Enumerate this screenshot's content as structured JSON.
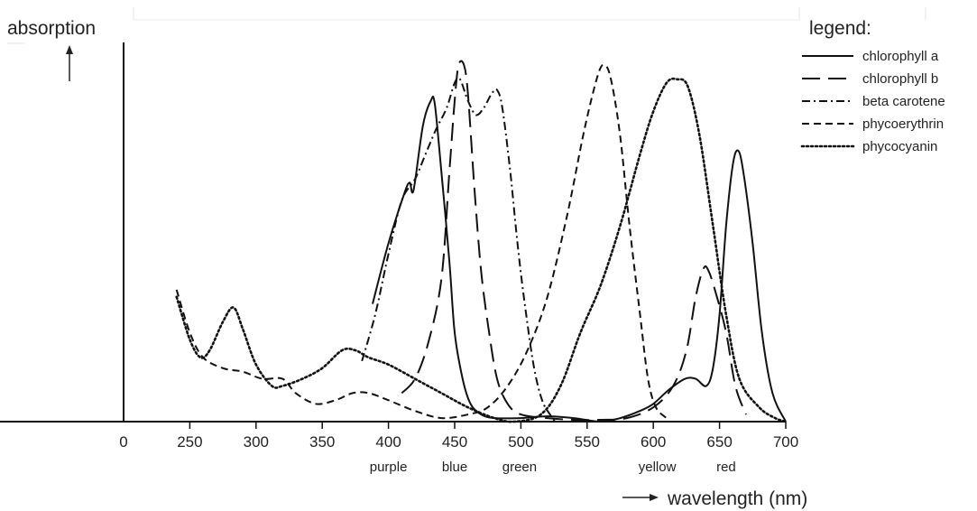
{
  "chart_data": {
    "type": "line",
    "title": "",
    "ylabel": "absorption",
    "xlabel": "wavelength (nm)",
    "xlim": [
      200,
      700
    ],
    "x_axis_break_between": [
      0,
      250
    ],
    "xticks": [
      "0",
      "250",
      "300",
      "350",
      "400",
      "450",
      "500",
      "550",
      "600",
      "650",
      "700"
    ],
    "xtick_values": [
      200,
      250,
      300,
      350,
      400,
      450,
      500,
      550,
      600,
      650,
      700
    ],
    "color_regions": [
      {
        "label": "purple",
        "x": 400
      },
      {
        "label": "blue",
        "x": 450
      },
      {
        "label": "green",
        "x": 499
      },
      {
        "label": "yellow",
        "x": 603
      },
      {
        "label": "red",
        "x": 655
      }
    ],
    "ylim": [
      0,
      1
    ],
    "legend": {
      "title": "legend:",
      "position": "top-right"
    },
    "series": [
      {
        "name": "chlorophyll a",
        "dash": "solid",
        "points": [
          [
            388,
            0.33
          ],
          [
            400,
            0.5
          ],
          [
            412,
            0.64
          ],
          [
            416,
            0.67
          ],
          [
            419,
            0.65
          ],
          [
            426,
            0.83
          ],
          [
            432,
            0.9
          ],
          [
            435,
            0.89
          ],
          [
            440,
            0.7
          ],
          [
            446,
            0.45
          ],
          [
            450,
            0.25
          ],
          [
            456,
            0.12
          ],
          [
            462,
            0.05
          ],
          [
            470,
            0.02
          ],
          [
            480,
            0.01
          ],
          [
            500,
            0.01
          ],
          [
            520,
            0.015
          ],
          [
            540,
            0.01
          ],
          [
            560,
            0.0
          ],
          [
            575,
            0.01
          ],
          [
            590,
            0.03
          ],
          [
            600,
            0.05
          ],
          [
            612,
            0.09
          ],
          [
            624,
            0.12
          ],
          [
            632,
            0.12
          ],
          [
            640,
            0.1
          ],
          [
            645,
            0.15
          ],
          [
            650,
            0.3
          ],
          [
            655,
            0.55
          ],
          [
            660,
            0.72
          ],
          [
            664,
            0.76
          ],
          [
            668,
            0.7
          ],
          [
            675,
            0.5
          ],
          [
            682,
            0.25
          ],
          [
            690,
            0.08
          ],
          [
            700,
            0.0
          ]
        ]
      },
      {
        "name": "chlorophyll b",
        "dash": "longdash",
        "points": [
          [
            410,
            0.08
          ],
          [
            420,
            0.12
          ],
          [
            430,
            0.22
          ],
          [
            440,
            0.4
          ],
          [
            446,
            0.7
          ],
          [
            450,
            0.9
          ],
          [
            453,
            1.0
          ],
          [
            457,
            1.0
          ],
          [
            460,
            0.92
          ],
          [
            465,
            0.65
          ],
          [
            470,
            0.42
          ],
          [
            476,
            0.25
          ],
          [
            482,
            0.12
          ],
          [
            490,
            0.05
          ],
          [
            500,
            0.02
          ],
          [
            520,
            0.01
          ],
          [
            540,
            0.005
          ],
          [
            560,
            0.005
          ],
          [
            580,
            0.01
          ],
          [
            600,
            0.04
          ],
          [
            615,
            0.1
          ],
          [
            625,
            0.2
          ],
          [
            632,
            0.35
          ],
          [
            638,
            0.43
          ],
          [
            642,
            0.42
          ],
          [
            648,
            0.35
          ],
          [
            655,
            0.25
          ],
          [
            662,
            0.1
          ],
          [
            670,
            0.02
          ]
        ]
      },
      {
        "name": "beta carotene",
        "dash": "dashdot",
        "points": [
          [
            380,
            0.17
          ],
          [
            390,
            0.3
          ],
          [
            400,
            0.47
          ],
          [
            410,
            0.62
          ],
          [
            420,
            0.68
          ],
          [
            428,
            0.75
          ],
          [
            436,
            0.82
          ],
          [
            444,
            0.88
          ],
          [
            450,
            0.95
          ],
          [
            454,
            0.96
          ],
          [
            460,
            0.9
          ],
          [
            466,
            0.86
          ],
          [
            472,
            0.88
          ],
          [
            478,
            0.92
          ],
          [
            482,
            0.93
          ],
          [
            486,
            0.88
          ],
          [
            492,
            0.7
          ],
          [
            498,
            0.48
          ],
          [
            504,
            0.3
          ],
          [
            510,
            0.15
          ],
          [
            516,
            0.06
          ],
          [
            522,
            0.02
          ],
          [
            526,
            0.0
          ]
        ]
      },
      {
        "name": "phycoerythrin",
        "dash": "dash",
        "points": [
          [
            240,
            0.37
          ],
          [
            250,
            0.25
          ],
          [
            260,
            0.18
          ],
          [
            275,
            0.15
          ],
          [
            290,
            0.14
          ],
          [
            305,
            0.12
          ],
          [
            320,
            0.12
          ],
          [
            330,
            0.08
          ],
          [
            345,
            0.05
          ],
          [
            360,
            0.06
          ],
          [
            373,
            0.08
          ],
          [
            385,
            0.08
          ],
          [
            400,
            0.06
          ],
          [
            420,
            0.03
          ],
          [
            440,
            0.01
          ],
          [
            460,
            0.02
          ],
          [
            475,
            0.04
          ],
          [
            490,
            0.1
          ],
          [
            505,
            0.2
          ],
          [
            520,
            0.35
          ],
          [
            535,
            0.58
          ],
          [
            548,
            0.82
          ],
          [
            558,
            0.97
          ],
          [
            563,
            1.0
          ],
          [
            568,
            0.96
          ],
          [
            575,
            0.8
          ],
          [
            582,
            0.55
          ],
          [
            590,
            0.3
          ],
          [
            596,
            0.12
          ],
          [
            602,
            0.04
          ],
          [
            610,
            0.01
          ]
        ]
      },
      {
        "name": "phycocyanin",
        "dash": "dot",
        "points": [
          [
            240,
            0.35
          ],
          [
            250,
            0.23
          ],
          [
            258,
            0.18
          ],
          [
            265,
            0.2
          ],
          [
            275,
            0.28
          ],
          [
            283,
            0.32
          ],
          [
            290,
            0.26
          ],
          [
            300,
            0.16
          ],
          [
            312,
            0.1
          ],
          [
            320,
            0.1
          ],
          [
            335,
            0.12
          ],
          [
            350,
            0.15
          ],
          [
            365,
            0.2
          ],
          [
            375,
            0.2
          ],
          [
            385,
            0.18
          ],
          [
            400,
            0.16
          ],
          [
            420,
            0.12
          ],
          [
            440,
            0.08
          ],
          [
            460,
            0.04
          ],
          [
            480,
            0.01
          ],
          [
            495,
            0.0
          ],
          [
            515,
            0.02
          ],
          [
            530,
            0.1
          ],
          [
            545,
            0.25
          ],
          [
            560,
            0.38
          ],
          [
            575,
            0.55
          ],
          [
            590,
            0.75
          ],
          [
            600,
            0.87
          ],
          [
            610,
            0.95
          ],
          [
            618,
            0.96
          ],
          [
            626,
            0.94
          ],
          [
            635,
            0.8
          ],
          [
            645,
            0.55
          ],
          [
            655,
            0.3
          ],
          [
            665,
            0.12
          ],
          [
            680,
            0.04
          ],
          [
            692,
            0.01
          ],
          [
            700,
            0.0
          ]
        ]
      }
    ]
  }
}
